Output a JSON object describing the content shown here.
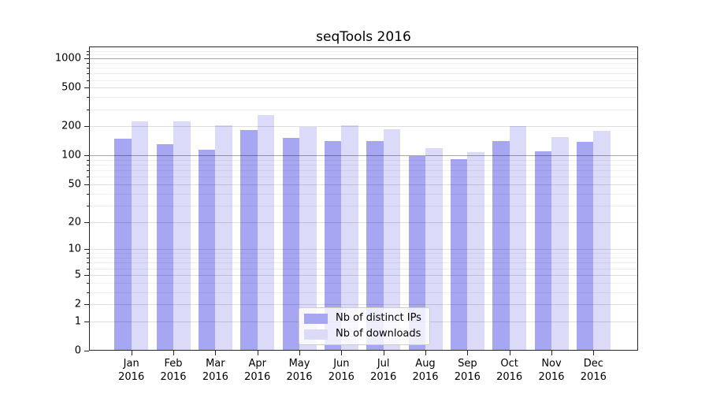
{
  "title": "seqTools 2016",
  "chart_data": {
    "type": "bar",
    "title": "seqTools 2016",
    "categories": [
      "Jan 2016",
      "Feb 2016",
      "Mar 2016",
      "Apr 2016",
      "May 2016",
      "Jun 2016",
      "Jul 2016",
      "Aug 2016",
      "Sep 2016",
      "Oct 2016",
      "Nov 2016",
      "Dec 2016"
    ],
    "months": [
      "Jan",
      "Feb",
      "Mar",
      "Apr",
      "May",
      "Jun",
      "Jul",
      "Aug",
      "Sep",
      "Oct",
      "Nov",
      "Dec"
    ],
    "year": "2016",
    "series": [
      {
        "name": "Nb of distinct IPs",
        "color": "#a6a6f2",
        "values": [
          149,
          130,
          115,
          185,
          151,
          142,
          142,
          98,
          92,
          142,
          110,
          138
        ]
      },
      {
        "name": "Nb of downloads",
        "color": "#dbdbf9",
        "values": [
          225,
          224,
          207,
          260,
          197,
          206,
          188,
          119,
          109,
          200,
          154,
          180
        ]
      }
    ],
    "xlabel": "",
    "ylabel": "",
    "yscale": "log1p",
    "yticks": [
      0,
      1,
      2,
      5,
      10,
      20,
      50,
      100,
      200,
      500,
      1000
    ],
    "ylim": [
      0,
      1310
    ],
    "grid": true,
    "legend_position": "lower center"
  }
}
